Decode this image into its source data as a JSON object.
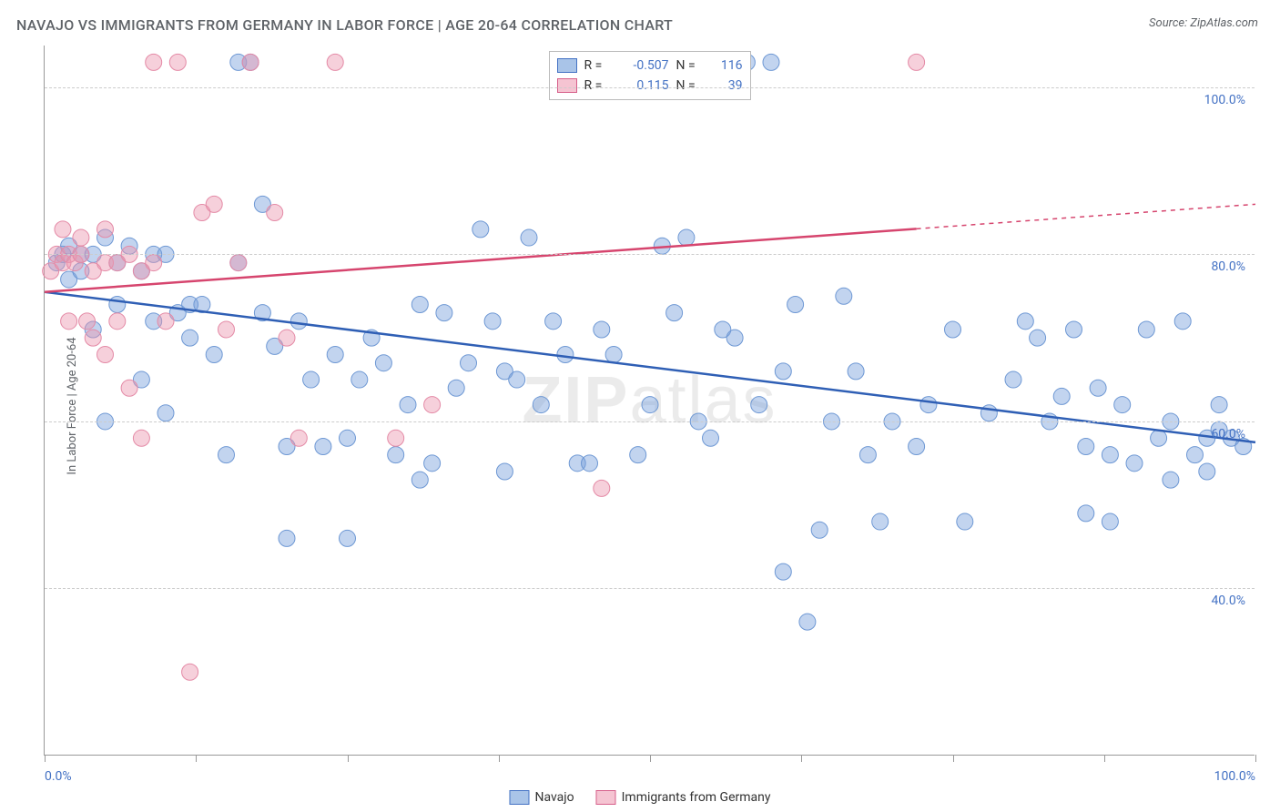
{
  "title": "NAVAJO VS IMMIGRANTS FROM GERMANY IN LABOR FORCE | AGE 20-64 CORRELATION CHART",
  "source": "Source: ZipAtlas.com",
  "ylabel": "In Labor Force | Age 20-64",
  "watermark_a": "ZIP",
  "watermark_b": "atlas",
  "chart": {
    "type": "scatter",
    "xlim": [
      0,
      100
    ],
    "ylim": [
      20,
      105
    ],
    "yticks": [
      40,
      60,
      80,
      100
    ],
    "ytick_labels": [
      "40.0%",
      "60.0%",
      "80.0%",
      "100.0%"
    ],
    "xticks": [
      0,
      12.5,
      25,
      37.5,
      50,
      62.5,
      75,
      87.5,
      100
    ],
    "xtick_labels_shown": {
      "0": "0.0%",
      "100": "100.0%"
    },
    "grid_color": "#cccccc",
    "axis_color": "#999999",
    "background_color": "#ffffff",
    "marker_radius": 9,
    "marker_opacity": 0.55,
    "line_width": 2.5,
    "series": [
      {
        "name": "Navajo",
        "color_fill": "rgba(120,160,220,0.45)",
        "color_stroke": "#6e98d4",
        "swatch_fill": "#a9c4e8",
        "swatch_border": "#4472c4",
        "R": "-0.507",
        "N": "116",
        "trend": {
          "x1": 0,
          "y1": 75.5,
          "x2": 100,
          "y2": 57.5,
          "color": "#2f5fb5",
          "dash_from_x": null
        },
        "points": [
          [
            1,
            79
          ],
          [
            1.5,
            80
          ],
          [
            2,
            81
          ],
          [
            2,
            77
          ],
          [
            3,
            80
          ],
          [
            3,
            78
          ],
          [
            4,
            80
          ],
          [
            4,
            71
          ],
          [
            5,
            82
          ],
          [
            5,
            60
          ],
          [
            6,
            79
          ],
          [
            6,
            74
          ],
          [
            7,
            81
          ],
          [
            8,
            78
          ],
          [
            8,
            65
          ],
          [
            9,
            80
          ],
          [
            9,
            72
          ],
          [
            10,
            80
          ],
          [
            10,
            61
          ],
          [
            11,
            73
          ],
          [
            12,
            70
          ],
          [
            12,
            74
          ],
          [
            13,
            74
          ],
          [
            14,
            68
          ],
          [
            15,
            56
          ],
          [
            16,
            103
          ],
          [
            16,
            79
          ],
          [
            17,
            103
          ],
          [
            18,
            86
          ],
          [
            18,
            73
          ],
          [
            19,
            69
          ],
          [
            20,
            57
          ],
          [
            20,
            46
          ],
          [
            21,
            72
          ],
          [
            22,
            65
          ],
          [
            23,
            57
          ],
          [
            24,
            68
          ],
          [
            25,
            58
          ],
          [
            25,
            46
          ],
          [
            26,
            65
          ],
          [
            27,
            70
          ],
          [
            28,
            67
          ],
          [
            29,
            56
          ],
          [
            30,
            62
          ],
          [
            31,
            74
          ],
          [
            31,
            53
          ],
          [
            32,
            55
          ],
          [
            33,
            73
          ],
          [
            34,
            64
          ],
          [
            35,
            67
          ],
          [
            36,
            83
          ],
          [
            37,
            72
          ],
          [
            38,
            66
          ],
          [
            38,
            54
          ],
          [
            39,
            65
          ],
          [
            40,
            82
          ],
          [
            41,
            62
          ],
          [
            42,
            72
          ],
          [
            43,
            68
          ],
          [
            44,
            55
          ],
          [
            45,
            55
          ],
          [
            46,
            71
          ],
          [
            47,
            68
          ],
          [
            49,
            56
          ],
          [
            50,
            62
          ],
          [
            51,
            81
          ],
          [
            52,
            73
          ],
          [
            53,
            82
          ],
          [
            54,
            60
          ],
          [
            55,
            58
          ],
          [
            56,
            71
          ],
          [
            57,
            70
          ],
          [
            58,
            103
          ],
          [
            59,
            62
          ],
          [
            60,
            103
          ],
          [
            61,
            66
          ],
          [
            61,
            42
          ],
          [
            62,
            74
          ],
          [
            63,
            36
          ],
          [
            64,
            47
          ],
          [
            65,
            60
          ],
          [
            66,
            75
          ],
          [
            67,
            66
          ],
          [
            68,
            56
          ],
          [
            69,
            48
          ],
          [
            70,
            60
          ],
          [
            72,
            57
          ],
          [
            73,
            62
          ],
          [
            75,
            71
          ],
          [
            76,
            48
          ],
          [
            78,
            61
          ],
          [
            80,
            65
          ],
          [
            81,
            72
          ],
          [
            82,
            70
          ],
          [
            83,
            60
          ],
          [
            84,
            63
          ],
          [
            85,
            71
          ],
          [
            86,
            57
          ],
          [
            86,
            49
          ],
          [
            87,
            64
          ],
          [
            88,
            56
          ],
          [
            88,
            48
          ],
          [
            89,
            62
          ],
          [
            90,
            55
          ],
          [
            91,
            71
          ],
          [
            92,
            58
          ],
          [
            93,
            53
          ],
          [
            93,
            60
          ],
          [
            94,
            72
          ],
          [
            95,
            56
          ],
          [
            96,
            58
          ],
          [
            96,
            54
          ],
          [
            97,
            59
          ],
          [
            97,
            62
          ],
          [
            98,
            58
          ],
          [
            99,
            57
          ]
        ]
      },
      {
        "name": "Immigrants from Germany",
        "color_fill": "rgba(235,150,175,0.45)",
        "color_stroke": "#e48aa6",
        "swatch_fill": "#f5c4d2",
        "swatch_border": "#d65f8a",
        "R": "0.115",
        "N": "39",
        "trend": {
          "x1": 0,
          "y1": 75.5,
          "x2": 100,
          "y2": 86,
          "color": "#d6456e",
          "dash_from_x": 72
        },
        "points": [
          [
            0.5,
            78
          ],
          [
            1,
            80
          ],
          [
            1.5,
            79
          ],
          [
            1.5,
            83
          ],
          [
            2,
            80
          ],
          [
            2,
            72
          ],
          [
            2.5,
            79
          ],
          [
            3,
            82
          ],
          [
            3,
            80
          ],
          [
            3.5,
            72
          ],
          [
            4,
            78
          ],
          [
            4,
            70
          ],
          [
            5,
            83
          ],
          [
            5,
            79
          ],
          [
            5,
            68
          ],
          [
            6,
            79
          ],
          [
            6,
            72
          ],
          [
            7,
            80
          ],
          [
            7,
            64
          ],
          [
            8,
            78
          ],
          [
            8,
            58
          ],
          [
            9,
            103
          ],
          [
            9,
            79
          ],
          [
            10,
            72
          ],
          [
            11,
            103
          ],
          [
            12,
            30
          ],
          [
            13,
            85
          ],
          [
            14,
            86
          ],
          [
            15,
            71
          ],
          [
            16,
            79
          ],
          [
            17,
            103
          ],
          [
            19,
            85
          ],
          [
            20,
            70
          ],
          [
            21,
            58
          ],
          [
            24,
            103
          ],
          [
            29,
            58
          ],
          [
            32,
            62
          ],
          [
            46,
            52
          ],
          [
            72,
            103
          ]
        ]
      }
    ]
  },
  "legend_bottom": [
    {
      "label": "Navajo",
      "swatch_fill": "#a9c4e8",
      "swatch_border": "#4472c4"
    },
    {
      "label": "Immigrants from Germany",
      "swatch_fill": "#f5c4d2",
      "swatch_border": "#d65f8a"
    }
  ],
  "tick_label_color": "#4472c4",
  "title_color": "#5f6368"
}
